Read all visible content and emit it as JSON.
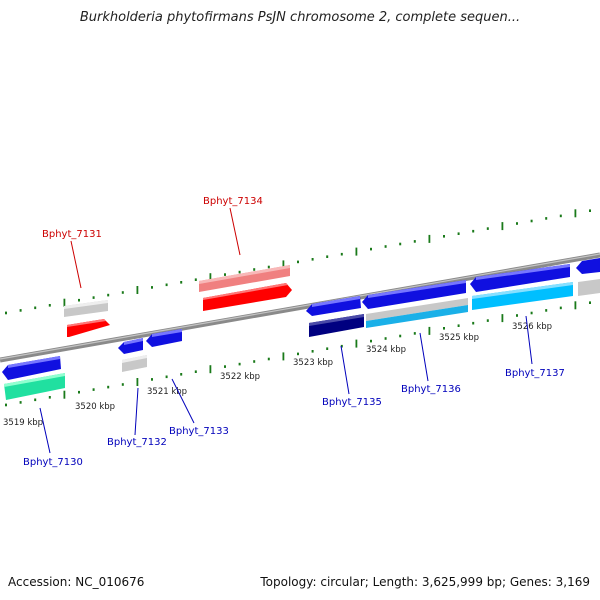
{
  "title": "Burkholderia phytofirmans PsJN chromosome 2, complete sequen...",
  "footer": {
    "accession": "Accession: NC_010676",
    "topology": "Topology: circular; Length: 3,625,999 bp; Genes: 3,169"
  },
  "colors": {
    "backbone": "#888888",
    "tick": "#1a7a1a",
    "label_red": "#cc0000",
    "label_blue": "#0000bb"
  },
  "axis_ticks": [
    "3519 kbp",
    "3520 kbp",
    "3521 kbp",
    "3522 kbp",
    "3523 kbp",
    "3524 kbp",
    "3525 kbp",
    "3526 kbp"
  ],
  "genes": [
    {
      "id": "Bphyt_7130",
      "strand": "minus",
      "color": "blue"
    },
    {
      "id": "Bphyt_7131",
      "strand": "plus",
      "color": "red"
    },
    {
      "id": "Bphyt_7132",
      "strand": "minus",
      "color": "blue"
    },
    {
      "id": "Bphyt_7133",
      "strand": "minus",
      "color": "blue"
    },
    {
      "id": "Bphyt_7134",
      "strand": "plus",
      "color": "red"
    },
    {
      "id": "Bphyt_7135",
      "strand": "minus",
      "color": "blue"
    },
    {
      "id": "Bphyt_7136",
      "strand": "minus",
      "color": "blue"
    },
    {
      "id": "Bphyt_7137",
      "strand": "minus",
      "color": "blue"
    }
  ]
}
